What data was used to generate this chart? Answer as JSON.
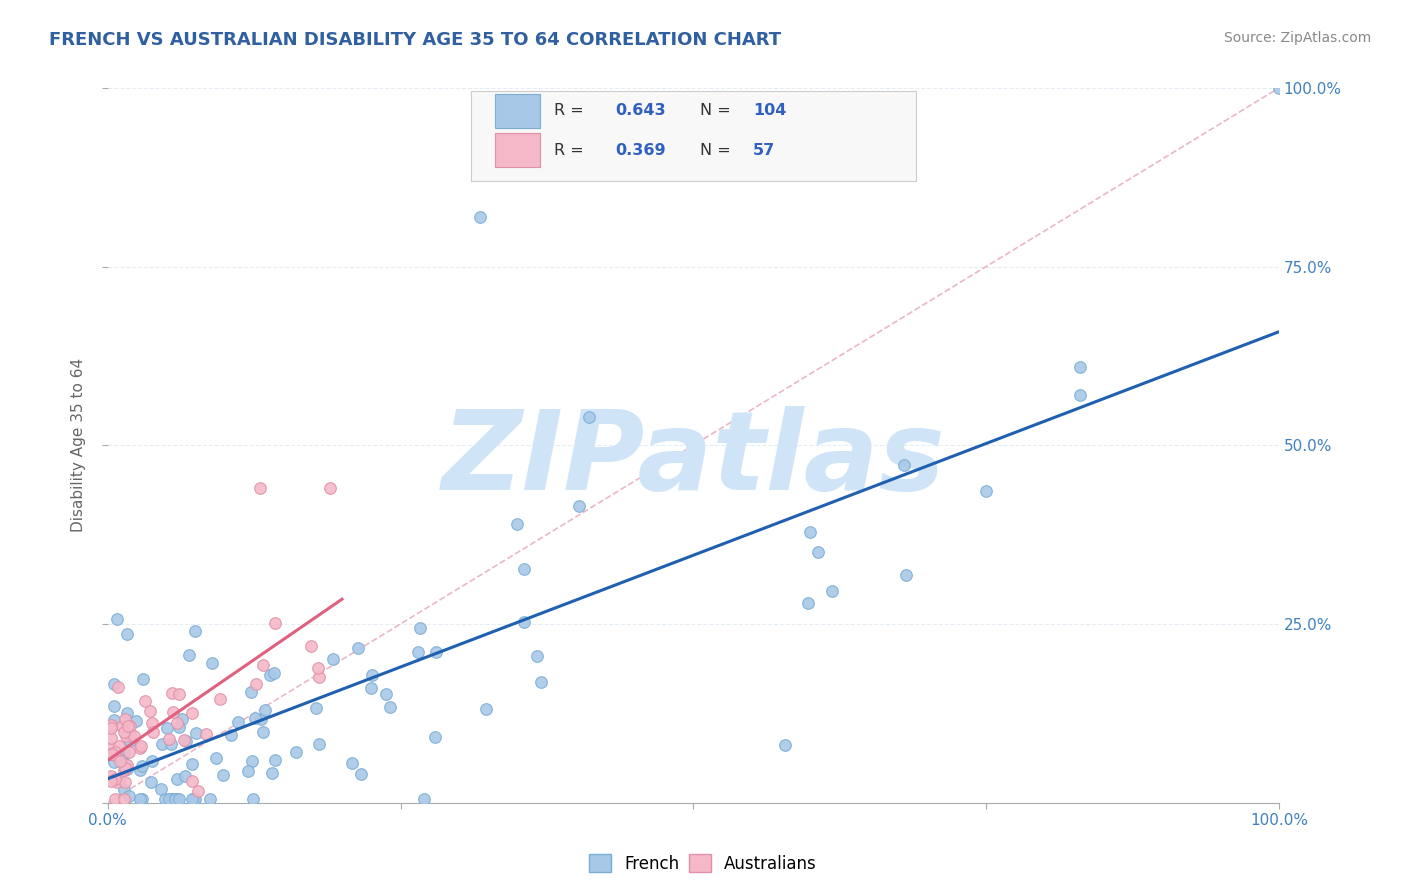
{
  "title": "FRENCH VS AUSTRALIAN DISABILITY AGE 35 TO 64 CORRELATION CHART",
  "source_text": "Source: ZipAtlas.com",
  "ylabel": "Disability Age 35 to 64",
  "xlim": [
    0.0,
    1.0
  ],
  "ylim": [
    0.0,
    1.0
  ],
  "french_color": "#a8c8e8",
  "french_edge": "#7aadd4",
  "australian_color": "#f4b8c8",
  "australian_edge": "#e090a8",
  "regression_french_color": "#2060b0",
  "regression_australian_color": "#e06080",
  "diagonal_color": "#e8b0c0",
  "diagonal_style": "--",
  "R_french": 0.643,
  "N_french": 104,
  "R_australian": 0.369,
  "N_australian": 57,
  "background_color": "#ffffff",
  "plot_bg_color": "#ffffff",
  "grid_color": "#e0e8f0",
  "watermark_color": "#d0e4f8",
  "legend_box_color": "#f8f8f8",
  "title_color": "#3060a0",
  "source_color": "#888888",
  "axis_label_color": "#666666",
  "tick_color": "#4080c0"
}
